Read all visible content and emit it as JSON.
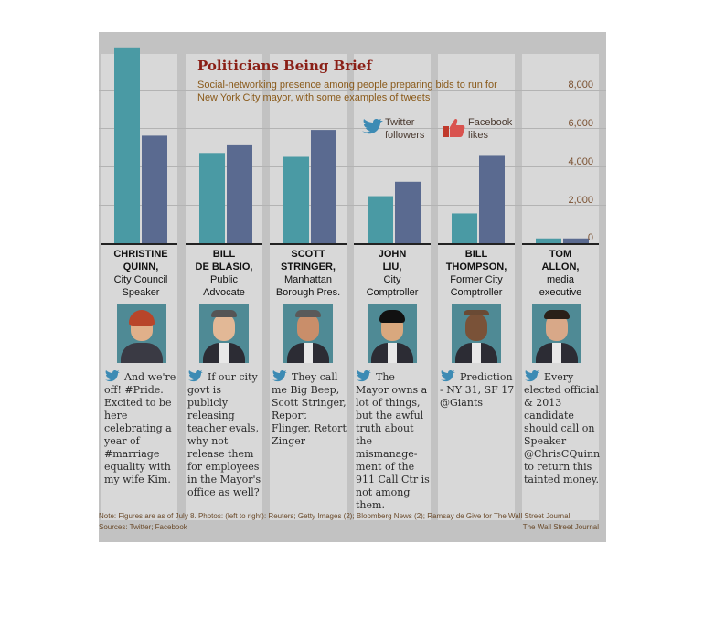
{
  "chart_data": {
    "type": "bar",
    "title": "Politicians Being Brief",
    "subtitle": "Social-networking presence among people preparing bids to run for New York City mayor, with some examples of tweets",
    "categories": [
      "Christine Quinn",
      "Bill de Blasio",
      "Scott Stringer",
      "John Liu",
      "Bill Thompson",
      "Tom Allon"
    ],
    "series": [
      {
        "name": "Twitter followers",
        "color": "#4a9aa4",
        "values": [
          10200,
          4700,
          4500,
          2450,
          1550,
          250
        ]
      },
      {
        "name": "Facebook likes",
        "color": "#5a6a90",
        "values": [
          5600,
          5100,
          5900,
          3200,
          4550,
          250
        ]
      }
    ],
    "ylim": [
      0,
      10200
    ],
    "yticks": [
      0,
      2000,
      4000,
      6000,
      8000
    ],
    "ytick_labels": [
      "0",
      "2,000",
      "4,000",
      "6,000",
      "8,000"
    ],
    "legend": [
      "Twitter followers",
      "Facebook likes"
    ],
    "legend_position": "top-right",
    "grid": true
  },
  "header": {
    "title": "Politicians Being Brief",
    "subtitle": "Social-networking presence among people preparing bids to run for New York City mayor, with some examples of tweets"
  },
  "legend": {
    "twitter_line1": "Twitter",
    "twitter_line2": "followers",
    "facebook_line1": "Facebook",
    "facebook_line2": "likes"
  },
  "people": [
    {
      "name_line1": "CHRISTINE",
      "name_line2": "QUINN,",
      "role_line1": "City Council",
      "role_line2": "Speaker",
      "tweet": "And we're off! #Pride. Excited to be here celebrating a year of #marriage equality with my wife Kim."
    },
    {
      "name_line1": "BILL",
      "name_line2": "DE BLASIO,",
      "role_line1": "Public",
      "role_line2": "Advocate",
      "tweet": "If our city govt is publicly releasing teacher evals, why not release them for employees in the Mayor's office as well?"
    },
    {
      "name_line1": "SCOTT",
      "name_line2": "STRINGER,",
      "role_line1": "Manhattan",
      "role_line2": "Borough Pres.",
      "tweet": "They call me Big Beep, Scott Stringer, Report Flinger, Retort Zinger"
    },
    {
      "name_line1": "JOHN",
      "name_line2": "LIU,",
      "role_line1": "City",
      "role_line2": "Comptroller",
      "tweet": "The Mayor owns a lot of things, but the awful truth about the mismanage-ment of the 911 Call Ctr is not among them."
    },
    {
      "name_line1": "BILL",
      "name_line2": "THOMPSON,",
      "role_line1": "Former City",
      "role_line2": "Comptroller",
      "tweet": "Prediction - NY 31, SF 17 @Giants"
    },
    {
      "name_line1": "TOM",
      "name_line2": "ALLON,",
      "role_line1": "media",
      "role_line2": "executive",
      "tweet": "Every elected official & 2013 candidate should call on Speaker @ChrisCQuinn to return this tainted money."
    }
  ],
  "footer": {
    "note": "Note: Figures are as of July 8.   Photos: (left to right): Reuters; Getty Images (2); Bloomberg News (2); Ramsay de Give for The Wall Street Journal",
    "sources": "Sources: Twitter; Facebook",
    "credit": "The Wall Street Journal"
  },
  "colors": {
    "twitter": "#4a9aa4",
    "facebook": "#5a6a90",
    "title": "#8a1f16",
    "panel": "#c2c2c2"
  }
}
